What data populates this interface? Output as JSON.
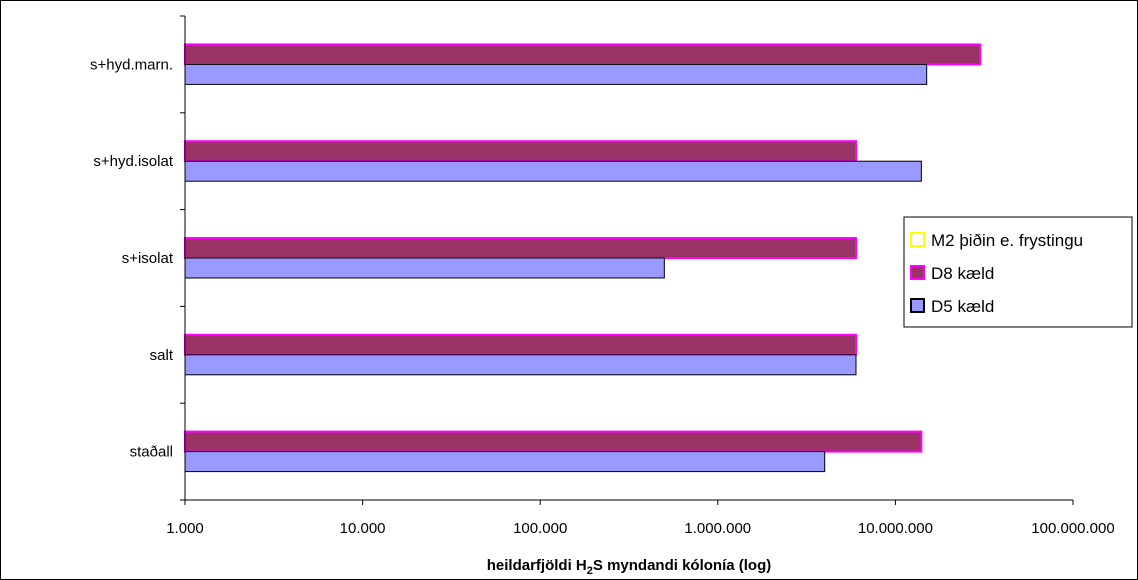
{
  "chart_data": {
    "type": "bar",
    "orientation": "horizontal",
    "categories": [
      "staðall",
      "salt",
      "s+isolat",
      "s+hyd.isolat",
      "s+hyd.marn."
    ],
    "series": [
      {
        "name": "M2 þiðin e. frystingu",
        "values": [
          null,
          null,
          null,
          null,
          null
        ],
        "fill": "#ffffff",
        "stroke": "#ffff00"
      },
      {
        "name": "D8 kæld",
        "values": [
          14000000,
          6000000,
          6000000,
          6000000,
          30000000
        ],
        "fill": "#993366",
        "stroke": "#ff00ff"
      },
      {
        "name": "D5 kæld",
        "values": [
          4000000,
          6000000,
          500000,
          14000000,
          15000000
        ],
        "fill": "#9999ff",
        "stroke": "#000000"
      }
    ],
    "xscale": "log",
    "xlim": [
      1000,
      100000000
    ],
    "x_ticks": [
      1000,
      10000,
      100000,
      1000000,
      10000000,
      100000000
    ],
    "x_tick_labels": [
      "1.000",
      "10.000",
      "100.000",
      "1.000.000",
      "10.000.000",
      "100.000.000"
    ],
    "xlabel": {
      "prefix": "heildarfjöldi H",
      "subscript": "2",
      "suffix": "S myndandi kólonía (log)"
    },
    "legend_position": "right"
  }
}
